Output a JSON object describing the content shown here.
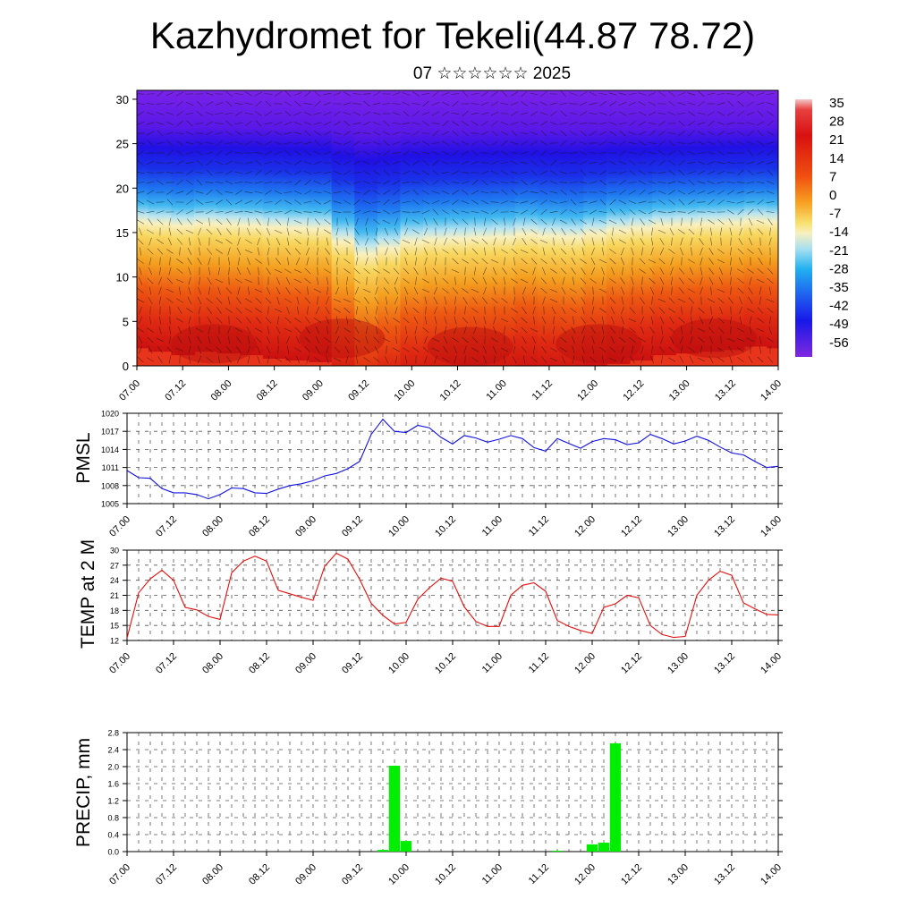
{
  "page": {
    "title": "Kazhydromet for Tekeli(44.87 78.72)",
    "subtitle": "07 ☆☆☆☆☆☆ 2025"
  },
  "chart_data": [
    {
      "type": "heatmap",
      "name": "cross-section",
      "y_ticks": [
        "0",
        "5",
        "10",
        "15",
        "20",
        "25",
        "30"
      ],
      "ylim": [
        0,
        31
      ],
      "x_ticks": [
        "07.00",
        "07.12",
        "08.00",
        "08.12",
        "09.00",
        "09.12",
        "10.00",
        "10.12",
        "11.00",
        "11.12",
        "12.00",
        "12.12",
        "13.00",
        "13.12",
        "14.00"
      ],
      "colorbar_labels": [
        "35",
        "28",
        "21",
        "14",
        "7",
        "0",
        "-7",
        "-14",
        "-21",
        "-28",
        "-35",
        "-42",
        "-49",
        "-56"
      ],
      "colorbar_range": [
        -63,
        38
      ],
      "freezing_level": [
        16.2,
        16.0,
        15.8,
        16.0,
        15.9,
        15.8,
        15.6,
        15.5,
        15.4,
        14.0,
        12.6,
        13.2,
        14.0,
        14.2,
        14.3,
        14.4,
        14.5,
        14.8,
        14.6,
        14.5,
        14.9,
        15.3,
        15.5,
        15.8,
        15.9,
        16.0,
        16.1,
        16.3,
        16.2
      ],
      "colors": {
        "hot": "#d81a1a",
        "cold": "#5a18e0"
      }
    },
    {
      "type": "line",
      "name": "pmsl",
      "ylabel": "PMSL",
      "y_ticks": [
        "1005",
        "1008",
        "1011",
        "1014",
        "1017",
        "1020"
      ],
      "ylim": [
        1005,
        1020
      ],
      "x_ticks": [
        "07.00",
        "07.12",
        "08.00",
        "08.12",
        "09.00",
        "09.12",
        "10.00",
        "10.12",
        "11.00",
        "11.12",
        "12.00",
        "12.12",
        "13.00",
        "13.12",
        "14.00"
      ],
      "x_max": 14,
      "color": "#1010e0",
      "series": [
        {
          "x": [
            0,
            0.25,
            0.5,
            0.75,
            1,
            1.25,
            1.5,
            1.75,
            2,
            2.25,
            2.5,
            2.75,
            3,
            3.25,
            3.5,
            3.75,
            4,
            4.25,
            4.5,
            4.75,
            5,
            5.25,
            5.5,
            5.75,
            6,
            6.25,
            6.5,
            6.75,
            7,
            7.25,
            7.5,
            7.75,
            8,
            8.25,
            8.5,
            8.75,
            9,
            9.25,
            9.5,
            9.75,
            10,
            10.25,
            10.5,
            10.75,
            11,
            11.25,
            11.5,
            11.75,
            12,
            12.25,
            12.5,
            12.75,
            13,
            13.25,
            13.5,
            13.75,
            14
          ],
          "values": [
            1010.5,
            1009.3,
            1009.2,
            1007.5,
            1006.8,
            1006.8,
            1006.5,
            1005.8,
            1006.5,
            1007.6,
            1007.5,
            1006.8,
            1006.7,
            1007.4,
            1008.0,
            1008.3,
            1008.8,
            1009.6,
            1010.0,
            1010.8,
            1012.0,
            1016.5,
            1019.0,
            1017.0,
            1016.8,
            1018.0,
            1017.6,
            1016.0,
            1014.9,
            1016.3,
            1015.9,
            1015.2,
            1015.7,
            1016.3,
            1015.8,
            1014.3,
            1013.7,
            1015.8,
            1015.0,
            1014.2,
            1015.3,
            1015.8,
            1015.6,
            1014.8,
            1015.1,
            1016.5,
            1015.8,
            1014.9,
            1015.4,
            1016.2,
            1015.5,
            1014.4,
            1013.4,
            1013.1,
            1012.0,
            1011.0,
            1011.2
          ]
        }
      ]
    },
    {
      "type": "line",
      "name": "temp2m",
      "ylabel": "TEMP at 2 M",
      "y_ticks": [
        "12",
        "15",
        "18",
        "21",
        "24",
        "27",
        "30"
      ],
      "ylim": [
        12,
        30
      ],
      "x_ticks": [
        "07.00",
        "07.12",
        "08.00",
        "08.12",
        "09.00",
        "09.12",
        "10.00",
        "10.12",
        "11.00",
        "11.12",
        "12.00",
        "12.12",
        "13.00",
        "13.12",
        "14.00"
      ],
      "x_max": 14,
      "color": "#e01010",
      "series": [
        {
          "x": [
            0,
            0.25,
            0.5,
            0.75,
            1,
            1.25,
            1.5,
            1.75,
            2,
            2.25,
            2.5,
            2.75,
            3,
            3.25,
            3.5,
            3.75,
            4,
            4.25,
            4.5,
            4.75,
            5,
            5.25,
            5.5,
            5.75,
            6,
            6.25,
            6.5,
            6.75,
            7,
            7.25,
            7.5,
            7.75,
            8,
            8.25,
            8.5,
            8.75,
            9,
            9.25,
            9.5,
            9.75,
            10,
            10.25,
            10.5,
            10.75,
            11,
            11.25,
            11.5,
            11.75,
            12,
            12.25,
            12.5,
            12.75,
            13,
            13.25,
            13.5,
            13.75,
            14
          ],
          "values": [
            12.5,
            21.5,
            24.3,
            26.0,
            24.0,
            18.6,
            18.1,
            16.8,
            16.2,
            25.5,
            27.8,
            28.8,
            27.8,
            22.0,
            21.3,
            20.6,
            20.0,
            26.8,
            29.4,
            28.2,
            24.2,
            19.4,
            17.0,
            15.3,
            15.6,
            20.2,
            22.5,
            24.4,
            23.8,
            18.7,
            15.8,
            14.8,
            14.8,
            21.0,
            23.0,
            23.5,
            21.8,
            16.0,
            14.8,
            14.0,
            13.4,
            18.6,
            19.3,
            21.0,
            20.5,
            15.0,
            13.2,
            12.6,
            12.8,
            21.0,
            24.0,
            25.8,
            25.0,
            19.5,
            18.3,
            17.2,
            17.1
          ]
        }
      ]
    },
    {
      "type": "bar",
      "name": "precip",
      "ylabel": "PRECIP, mm",
      "y_ticks": [
        "0.0",
        "0.4",
        "0.8",
        "1.2",
        "1.6",
        "2.0",
        "2.4",
        "2.8"
      ],
      "ylim": [
        0,
        2.8
      ],
      "x_ticks": [
        "07.00",
        "07.12",
        "08.00",
        "08.12",
        "09.00",
        "09.12",
        "10.00",
        "10.12",
        "11.00",
        "11.12",
        "12.00",
        "12.12",
        "13.00",
        "13.12",
        "14.00"
      ],
      "x_max": 14,
      "color": "#00ee00",
      "series": [
        {
          "x": [
            5.5,
            5.75,
            6.0,
            9.25,
            10.0,
            10.25,
            10.5
          ],
          "values": [
            0.04,
            2.02,
            0.25,
            0.02,
            0.17,
            0.21,
            2.55
          ]
        }
      ]
    }
  ]
}
